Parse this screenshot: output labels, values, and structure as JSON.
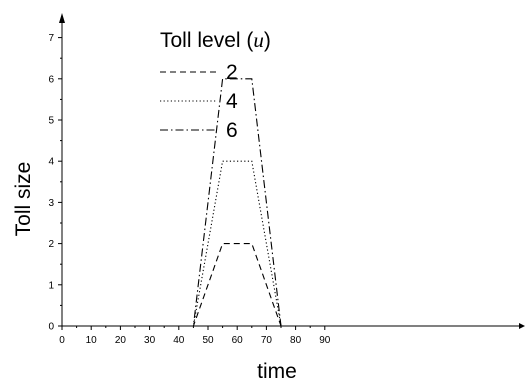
{
  "chart_data": {
    "type": "line",
    "xlabel": "time",
    "ylabel": "Toll size",
    "xlim": [
      0,
      95
    ],
    "ylim": [
      0,
      7.5
    ],
    "xticks": [
      0,
      10,
      20,
      30,
      40,
      50,
      60,
      70,
      80,
      90
    ],
    "yticks": [
      0,
      1,
      2,
      3,
      4,
      5,
      6,
      7
    ],
    "grid": false,
    "legend": {
      "title_prefix": "Toll level (",
      "title_var": "u",
      "title_suffix": ")",
      "placement": "top-left"
    },
    "series": [
      {
        "name": "2",
        "style": "dashed",
        "x": [
          0,
          45,
          55,
          65,
          75,
          95
        ],
        "y": [
          0,
          0,
          2,
          2,
          0,
          0
        ]
      },
      {
        "name": "4",
        "style": "dotted",
        "x": [
          0,
          45,
          55,
          65,
          75,
          95
        ],
        "y": [
          0,
          0,
          4,
          4,
          0,
          0
        ]
      },
      {
        "name": "6",
        "style": "dashdot",
        "x": [
          0,
          45,
          55,
          65,
          75,
          95
        ],
        "y": [
          0,
          0,
          6,
          6,
          0,
          0
        ]
      }
    ]
  }
}
